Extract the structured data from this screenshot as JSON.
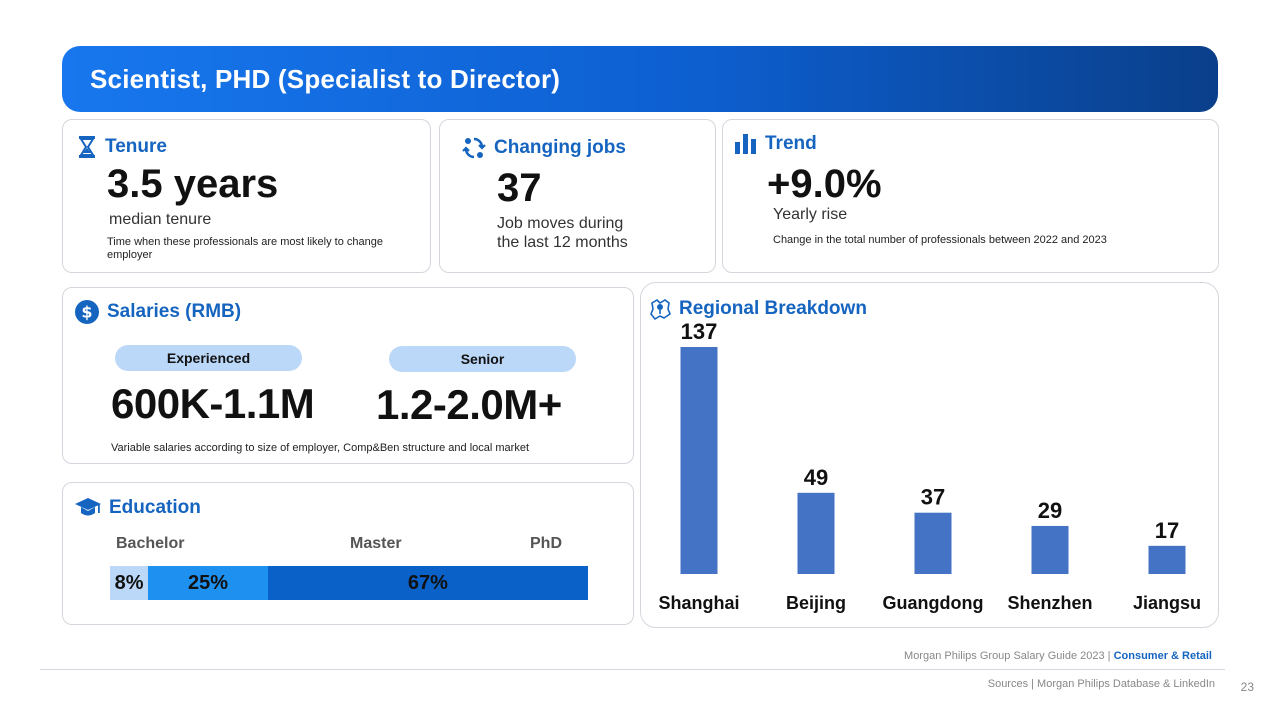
{
  "header": {
    "title": "Scientist, PHD (Specialist to Director)"
  },
  "tenure": {
    "title": "Tenure",
    "value": "3.5 years",
    "label": "median tenure",
    "note": "Time when these professionals are most likely to  change employer"
  },
  "jobs": {
    "title": "Changing jobs",
    "value": "37",
    "label_line1": "Job moves during",
    "label_line2": "the last 12 months"
  },
  "trend": {
    "title": "Trend",
    "value": "+9.0%",
    "label": "Yearly rise",
    "note": "Change in the total number of professionals between 2022 and 2023"
  },
  "salaries": {
    "title": "Salaries (RMB)",
    "experienced_label": "Experienced",
    "experienced_value": "600K-1.1M",
    "senior_label": "Senior",
    "senior_value": "1.2-2.0M+",
    "note": "Variable salaries according to size of employer, Comp&Ben structure and local market"
  },
  "education": {
    "title": "Education",
    "labels": [
      "Bachelor",
      "Master",
      "PhD"
    ],
    "segments": [
      {
        "label": "8%",
        "value": 8,
        "color": "#bcd8f8"
      },
      {
        "label": "25%",
        "value": 25,
        "color": "#1e90f0"
      },
      {
        "label": "67%",
        "value": 67,
        "color": "#0a62c8"
      }
    ]
  },
  "regional": {
    "title": "Regional Breakdown"
  },
  "chart_data": {
    "type": "bar",
    "title": "Regional Breakdown",
    "categories": [
      "Shanghai",
      "Beijing",
      "Guangdong",
      "Shenzhen",
      "Jiangsu"
    ],
    "values": [
      137,
      49,
      37,
      29,
      17
    ],
    "bar_color": "#4472c4",
    "ylim": [
      0,
      137
    ],
    "grid": false
  },
  "footer": {
    "guide": "Morgan Philips Group Salary Guide 2023 |",
    "guide_accent": "Consumer & Retail",
    "sources": "Sources | Morgan Philips Database & LinkedIn",
    "page": "23"
  }
}
